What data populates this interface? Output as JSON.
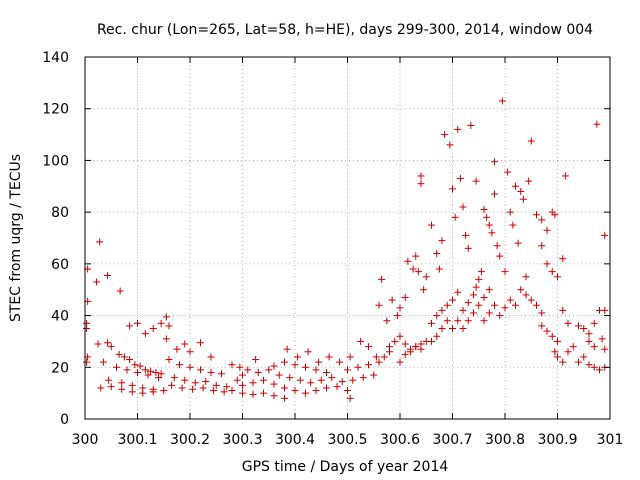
{
  "chart_data": {
    "type": "scatter",
    "title": "Rec. chur (Lon=265, Lat=58, h=HE), days 299-300, 2014, window 004",
    "xlabel": "GPS time / Days of year 2014",
    "ylabel": "STEC from uqrg / TECUs",
    "xlim": [
      300,
      301
    ],
    "ylim": [
      0,
      140
    ],
    "x_ticks": [
      300,
      300.1,
      300.2,
      300.3,
      300.4,
      300.5,
      300.6,
      300.7,
      300.8,
      300.9,
      301
    ],
    "x_tick_labels": [
      "300",
      "300.1",
      "300.2",
      "300.3",
      "300.4",
      "300.5",
      "300.6",
      "300.7",
      "300.8",
      "300.9",
      "301"
    ],
    "y_ticks": [
      0,
      20,
      40,
      60,
      80,
      100,
      120,
      140
    ],
    "y_tick_labels": [
      "0",
      "20",
      "40",
      "60",
      "80",
      "100",
      "120",
      "140"
    ],
    "grid": true,
    "marker": "+",
    "marker_color": "#cc0000",
    "series": [
      {
        "points": [
          [
            300.005,
            58
          ],
          [
            300.005,
            45.5
          ],
          [
            300.003,
            37
          ],
          [
            300.003,
            35
          ],
          [
            300.005,
            24
          ],
          [
            300.003,
            22
          ],
          [
            300.028,
            68.5
          ],
          [
            300.022,
            53
          ],
          [
            300.043,
            55.5
          ],
          [
            300.067,
            49.5
          ],
          [
            300.025,
            29
          ],
          [
            300.043,
            29.5
          ],
          [
            300.05,
            28
          ],
          [
            300.065,
            25
          ],
          [
            300.075,
            24
          ],
          [
            300.085,
            23
          ],
          [
            300.095,
            21
          ],
          [
            300.105,
            20.5
          ],
          [
            300.115,
            19
          ],
          [
            300.125,
            18.5
          ],
          [
            300.135,
            18
          ],
          [
            300.145,
            17.5
          ],
          [
            300.035,
            22
          ],
          [
            300.06,
            20
          ],
          [
            300.08,
            19
          ],
          [
            300.1,
            18
          ],
          [
            300.12,
            17
          ],
          [
            300.14,
            16
          ],
          [
            300.045,
            15
          ],
          [
            300.07,
            14
          ],
          [
            300.09,
            13
          ],
          [
            300.11,
            12
          ],
          [
            300.13,
            11.5
          ],
          [
            300.15,
            11
          ],
          [
            300.03,
            12
          ],
          [
            300.05,
            12.5
          ],
          [
            300.07,
            11.5
          ],
          [
            300.09,
            10.5
          ],
          [
            300.11,
            10
          ],
          [
            300.13,
            10.5
          ],
          [
            300.085,
            36
          ],
          [
            300.1,
            37
          ],
          [
            300.115,
            33
          ],
          [
            300.13,
            35
          ],
          [
            300.145,
            37
          ],
          [
            300.155,
            39.5
          ],
          [
            300.16,
            36
          ],
          [
            300.155,
            31
          ],
          [
            300.175,
            27
          ],
          [
            300.19,
            29
          ],
          [
            300.2,
            26
          ],
          [
            300.22,
            29.5
          ],
          [
            300.24,
            24
          ],
          [
            300.16,
            23
          ],
          [
            300.18,
            21
          ],
          [
            300.2,
            20
          ],
          [
            300.22,
            19
          ],
          [
            300.24,
            18
          ],
          [
            300.26,
            17.5
          ],
          [
            300.17,
            16
          ],
          [
            300.19,
            15
          ],
          [
            300.21,
            14
          ],
          [
            300.23,
            14.5
          ],
          [
            300.25,
            13
          ],
          [
            300.27,
            12.5
          ],
          [
            300.165,
            13
          ],
          [
            300.185,
            12
          ],
          [
            300.205,
            11.5
          ],
          [
            300.225,
            12
          ],
          [
            300.245,
            11
          ],
          [
            300.265,
            10.5
          ],
          [
            300.28,
            21
          ],
          [
            300.295,
            20
          ],
          [
            300.31,
            19
          ],
          [
            300.325,
            23
          ],
          [
            300.29,
            15
          ],
          [
            300.3,
            17
          ],
          [
            300.28,
            11
          ],
          [
            300.3,
            10
          ],
          [
            300.32,
            9.5
          ],
          [
            300.34,
            10
          ],
          [
            300.36,
            9
          ],
          [
            300.38,
            8
          ],
          [
            300.3,
            13
          ],
          [
            300.32,
            14
          ],
          [
            300.34,
            15
          ],
          [
            300.36,
            13.5
          ],
          [
            300.38,
            12
          ],
          [
            300.4,
            11
          ],
          [
            300.33,
            18
          ],
          [
            300.35,
            19
          ],
          [
            300.37,
            17
          ],
          [
            300.39,
            16
          ],
          [
            300.41,
            15
          ],
          [
            300.43,
            14
          ],
          [
            300.36,
            20.5
          ],
          [
            300.38,
            22
          ],
          [
            300.4,
            21
          ],
          [
            300.42,
            20
          ],
          [
            300.44,
            19
          ],
          [
            300.46,
            18
          ],
          [
            300.385,
            27
          ],
          [
            300.405,
            24
          ],
          [
            300.425,
            26
          ],
          [
            300.445,
            22
          ],
          [
            300.465,
            24
          ],
          [
            300.485,
            22
          ],
          [
            300.42,
            10
          ],
          [
            300.44,
            11
          ],
          [
            300.46,
            12
          ],
          [
            300.48,
            12.5
          ],
          [
            300.5,
            11
          ],
          [
            300.505,
            8
          ],
          [
            300.45,
            15
          ],
          [
            300.47,
            16
          ],
          [
            300.49,
            14.5
          ],
          [
            300.51,
            15
          ],
          [
            300.53,
            16
          ],
          [
            300.55,
            17
          ],
          [
            300.5,
            19
          ],
          [
            300.52,
            20
          ],
          [
            300.54,
            21
          ],
          [
            300.56,
            22
          ],
          [
            300.57,
            24
          ],
          [
            300.58,
            26
          ],
          [
            300.505,
            24
          ],
          [
            300.525,
            30
          ],
          [
            300.54,
            28
          ],
          [
            300.555,
            24
          ],
          [
            300.56,
            44
          ],
          [
            300.565,
            54
          ],
          [
            300.575,
            38
          ],
          [
            300.585,
            46
          ],
          [
            300.595,
            40
          ],
          [
            300.6,
            43
          ],
          [
            300.61,
            47
          ],
          [
            300.58,
            28
          ],
          [
            300.59,
            30
          ],
          [
            300.6,
            32
          ],
          [
            300.61,
            29
          ],
          [
            300.62,
            27
          ],
          [
            300.63,
            28
          ],
          [
            300.64,
            27
          ],
          [
            300.6,
            22
          ],
          [
            300.61,
            25
          ],
          [
            300.62,
            26
          ],
          [
            300.63,
            28
          ],
          [
            300.64,
            29
          ],
          [
            300.65,
            30
          ],
          [
            300.615,
            61
          ],
          [
            300.625,
            58
          ],
          [
            300.63,
            63
          ],
          [
            300.635,
            57
          ],
          [
            300.645,
            50
          ],
          [
            300.65,
            55
          ],
          [
            300.64,
            94
          ],
          [
            300.64,
            91
          ],
          [
            300.66,
            75
          ],
          [
            300.67,
            64
          ],
          [
            300.675,
            58
          ],
          [
            300.68,
            69
          ],
          [
            300.685,
            110
          ],
          [
            300.695,
            106
          ],
          [
            300.7,
            89
          ],
          [
            300.705,
            78
          ],
          [
            300.71,
            112
          ],
          [
            300.715,
            93
          ],
          [
            300.72,
            82
          ],
          [
            300.725,
            71
          ],
          [
            300.73,
            66
          ],
          [
            300.735,
            113.5
          ],
          [
            300.66,
            37
          ],
          [
            300.67,
            40
          ],
          [
            300.68,
            42
          ],
          [
            300.69,
            44
          ],
          [
            300.7,
            46
          ],
          [
            300.71,
            49
          ],
          [
            300.66,
            30
          ],
          [
            300.67,
            32
          ],
          [
            300.68,
            35
          ],
          [
            300.69,
            38
          ],
          [
            300.7,
            35
          ],
          [
            300.71,
            38
          ],
          [
            300.72,
            42
          ],
          [
            300.73,
            45
          ],
          [
            300.74,
            48
          ],
          [
            300.745,
            51
          ],
          [
            300.75,
            54
          ],
          [
            300.755,
            57
          ],
          [
            300.72,
            35
          ],
          [
            300.73,
            38
          ],
          [
            300.74,
            41
          ],
          [
            300.75,
            44
          ],
          [
            300.76,
            47
          ],
          [
            300.77,
            50
          ],
          [
            300.745,
            92
          ],
          [
            300.76,
            81
          ],
          [
            300.765,
            78
          ],
          [
            300.77,
            75
          ],
          [
            300.775,
            72
          ],
          [
            300.78,
            87
          ],
          [
            300.78,
            99.5
          ],
          [
            300.785,
            67
          ],
          [
            300.79,
            63
          ],
          [
            300.795,
            123
          ],
          [
            300.8,
            57
          ],
          [
            300.805,
            95.5
          ],
          [
            300.81,
            80
          ],
          [
            300.815,
            75
          ],
          [
            300.82,
            90
          ],
          [
            300.825,
            68
          ],
          [
            300.83,
            88
          ],
          [
            300.835,
            85
          ],
          [
            300.84,
            55
          ],
          [
            300.845,
            92
          ],
          [
            300.85,
            107.5
          ],
          [
            300.76,
            38
          ],
          [
            300.77,
            41
          ],
          [
            300.78,
            44
          ],
          [
            300.79,
            40
          ],
          [
            300.8,
            43
          ],
          [
            300.81,
            46
          ],
          [
            300.82,
            44
          ],
          [
            300.83,
            50
          ],
          [
            300.84,
            48
          ],
          [
            300.85,
            46
          ],
          [
            300.86,
            44
          ],
          [
            300.87,
            41
          ],
          [
            300.86,
            79
          ],
          [
            300.87,
            77
          ],
          [
            300.88,
            73
          ],
          [
            300.89,
            80
          ],
          [
            300.895,
            79
          ],
          [
            300.87,
            67
          ],
          [
            300.88,
            60
          ],
          [
            300.89,
            57
          ],
          [
            300.9,
            55
          ],
          [
            300.91,
            62
          ],
          [
            300.87,
            36
          ],
          [
            300.88,
            34
          ],
          [
            300.89,
            32
          ],
          [
            300.9,
            30
          ],
          [
            300.91,
            42
          ],
          [
            300.92,
            37
          ],
          [
            300.915,
            94
          ],
          [
            300.895,
            26
          ],
          [
            300.9,
            24
          ],
          [
            300.91,
            22
          ],
          [
            300.92,
            26
          ],
          [
            300.93,
            28
          ],
          [
            300.94,
            22
          ],
          [
            300.95,
            24
          ],
          [
            300.96,
            21
          ],
          [
            300.97,
            20
          ],
          [
            300.98,
            19
          ],
          [
            300.99,
            20
          ],
          [
            300.94,
            36
          ],
          [
            300.95,
            35
          ],
          [
            300.96,
            33
          ],
          [
            300.97,
            37
          ],
          [
            300.98,
            42
          ],
          [
            300.99,
            42
          ],
          [
            300.975,
            114
          ],
          [
            300.99,
            71
          ],
          [
            300.985,
            31
          ],
          [
            300.97,
            28
          ],
          [
            300.96,
            30
          ],
          [
            300.99,
            27
          ]
        ]
      }
    ]
  }
}
